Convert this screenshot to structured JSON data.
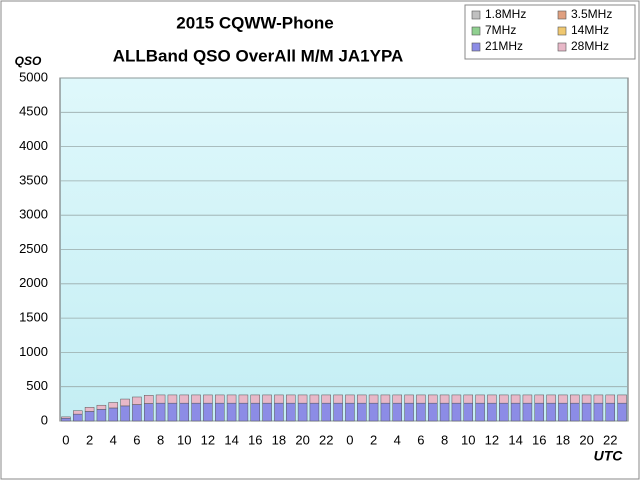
{
  "chart_data": {
    "type": "stacked_bar",
    "title": "2015 CQWW-Phone",
    "subtitle": "ALLBand QSO OverAll M/M JA1YPA",
    "y_label": "QSO",
    "x_label": "UTC",
    "categories": [
      "0",
      null,
      "2",
      null,
      "4",
      null,
      "6",
      null,
      "8",
      null,
      "10",
      null,
      "12",
      null,
      "14",
      null,
      "16",
      null,
      "18",
      null,
      "20",
      null,
      "22",
      null,
      "0",
      null,
      "2",
      null,
      "4",
      null,
      "6",
      null,
      "8",
      null,
      "10",
      null,
      "12",
      null,
      "14",
      null,
      "16",
      null,
      "18",
      null,
      "20",
      null,
      "22",
      null
    ],
    "series": [
      {
        "name": "1.8MHz",
        "color": "#c0c0c0",
        "values": [
          0,
          0,
          0,
          0,
          0,
          0,
          0,
          0,
          0,
          0,
          0,
          0,
          0,
          0,
          0,
          0,
          0,
          0,
          0,
          0,
          0,
          0,
          0,
          0,
          0,
          0,
          0,
          0,
          0,
          0,
          0,
          0,
          0,
          0,
          0,
          0,
          0,
          0,
          0,
          0,
          0,
          0,
          0,
          0,
          0,
          0,
          0,
          0
        ]
      },
      {
        "name": "3.5MHz",
        "color": "#e0a080",
        "values": [
          0,
          0,
          0,
          0,
          0,
          0,
          0,
          0,
          0,
          0,
          0,
          0,
          0,
          0,
          0,
          0,
          0,
          0,
          0,
          0,
          0,
          0,
          0,
          0,
          0,
          0,
          0,
          0,
          0,
          0,
          0,
          0,
          0,
          0,
          0,
          0,
          0,
          0,
          0,
          0,
          0,
          0,
          0,
          0,
          0,
          0,
          0,
          0
        ]
      },
      {
        "name": "7MHz",
        "color": "#90d090",
        "values": [
          0,
          0,
          0,
          0,
          0,
          0,
          0,
          0,
          0,
          0,
          0,
          0,
          0,
          0,
          0,
          0,
          0,
          0,
          0,
          0,
          0,
          0,
          0,
          0,
          0,
          0,
          0,
          0,
          0,
          0,
          0,
          0,
          0,
          0,
          0,
          0,
          0,
          0,
          0,
          0,
          0,
          0,
          0,
          0,
          0,
          0,
          0,
          0
        ]
      },
      {
        "name": "14MHz",
        "color": "#f0c870",
        "values": [
          0,
          0,
          0,
          0,
          0,
          0,
          0,
          0,
          0,
          0,
          0,
          0,
          0,
          0,
          0,
          0,
          0,
          0,
          0,
          0,
          0,
          0,
          0,
          0,
          0,
          0,
          0,
          0,
          0,
          0,
          0,
          0,
          0,
          0,
          0,
          0,
          0,
          0,
          0,
          0,
          0,
          0,
          0,
          0,
          0,
          0,
          0,
          0
        ]
      },
      {
        "name": "21MHz",
        "color": "#8c8ce6",
        "values": [
          40,
          100,
          140,
          170,
          190,
          220,
          240,
          255,
          260,
          260,
          260,
          260,
          260,
          260,
          260,
          260,
          260,
          260,
          260,
          260,
          260,
          260,
          260,
          260,
          260,
          260,
          260,
          260,
          260,
          260,
          260,
          260,
          260,
          260,
          260,
          260,
          260,
          260,
          260,
          260,
          260,
          260,
          260,
          260,
          260,
          260,
          260,
          260
        ]
      },
      {
        "name": "28MHz",
        "color": "#e8b8c8",
        "values": [
          20,
          50,
          60,
          60,
          80,
          100,
          110,
          120,
          120,
          120,
          120,
          120,
          120,
          120,
          120,
          120,
          120,
          120,
          120,
          120,
          120,
          120,
          120,
          120,
          120,
          120,
          120,
          120,
          120,
          120,
          120,
          120,
          120,
          120,
          120,
          120,
          120,
          120,
          120,
          120,
          120,
          120,
          120,
          120,
          120,
          120,
          120,
          120
        ]
      }
    ],
    "ylim": [
      0,
      5000
    ],
    "yticks": [
      0,
      500,
      1000,
      1500,
      2000,
      2500,
      3000,
      3500,
      4000,
      4500,
      5000
    ],
    "grid": true
  }
}
